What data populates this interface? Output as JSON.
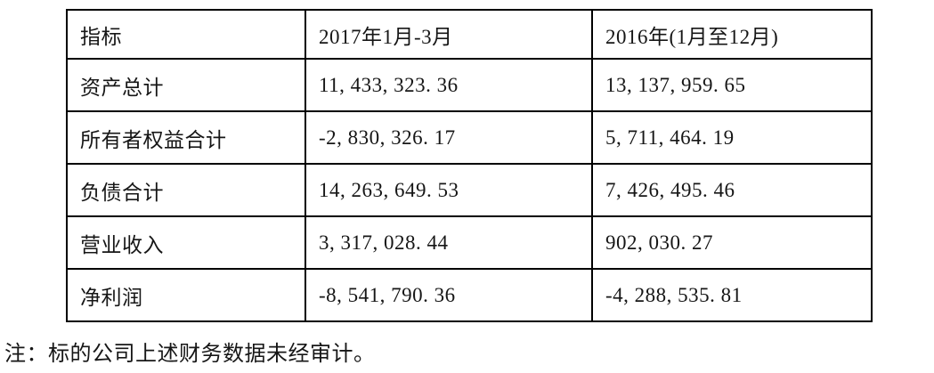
{
  "table": {
    "columns": [
      "指标",
      "2017年1月-3月",
      "2016年(1月至12月)"
    ],
    "rows": [
      [
        "资产总计",
        "11, 433, 323. 36",
        "13, 137, 959. 65"
      ],
      [
        "所有者权益合计",
        "-2, 830, 326. 17",
        "5, 711, 464. 19"
      ],
      [
        "负债合计",
        "14, 263, 649. 53",
        "7, 426, 495. 46"
      ],
      [
        "营业收入",
        "3, 317, 028. 44",
        "902, 030. 27"
      ],
      [
        "净利润",
        "-8, 541, 790. 36",
        "-4, 288, 535. 81"
      ]
    ]
  },
  "note": "注：标的公司上述财务数据未经审计。",
  "colors": {
    "border": "#000000",
    "text": "#161616",
    "background": "#ffffff"
  }
}
